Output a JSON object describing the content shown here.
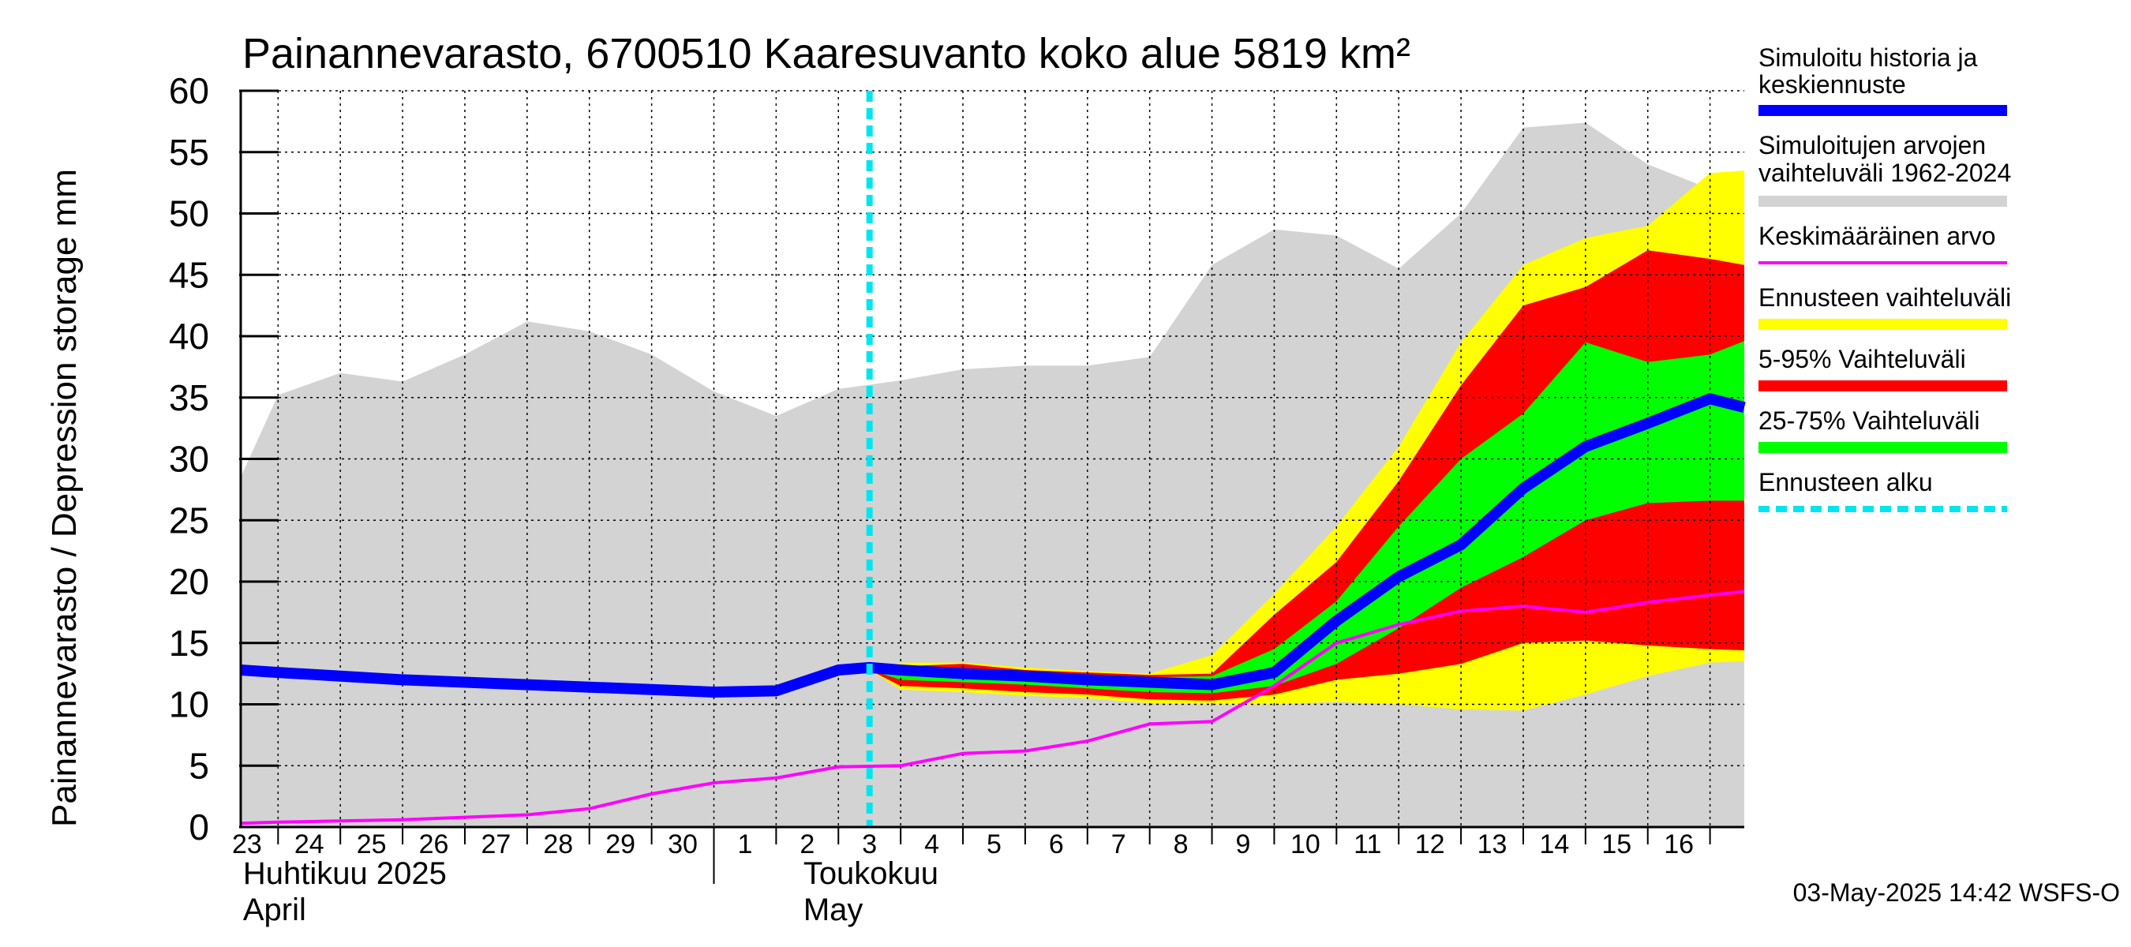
{
  "chart_data": {
    "type": "area",
    "title": "Painannevarasto, 6700510 Kaaresuvanto koko alue 5819 km²",
    "ylabel": "Painannevarasto / Depression storage    mm",
    "ylim": [
      0,
      60
    ],
    "yticks": [
      0,
      5,
      10,
      15,
      20,
      25,
      30,
      35,
      40,
      45,
      50,
      55,
      60
    ],
    "x_range": [
      -0.1,
      24.05
    ],
    "x_day_index_note_days": [
      {
        "i": 0,
        "label": "23"
      },
      {
        "i": 1,
        "label": "24"
      },
      {
        "i": 2,
        "label": "25"
      },
      {
        "i": 3,
        "label": "26"
      },
      {
        "i": 4,
        "label": "27"
      },
      {
        "i": 5,
        "label": "28"
      },
      {
        "i": 6,
        "label": "29"
      },
      {
        "i": 7,
        "label": "30"
      },
      {
        "i": 8,
        "label": "1"
      },
      {
        "i": 9,
        "label": "2"
      },
      {
        "i": 10,
        "label": "3"
      },
      {
        "i": 11,
        "label": "4"
      },
      {
        "i": 12,
        "label": "5"
      },
      {
        "i": 13,
        "label": "6"
      },
      {
        "i": 14,
        "label": "7"
      },
      {
        "i": 15,
        "label": "8"
      },
      {
        "i": 16,
        "label": "9"
      },
      {
        "i": 17,
        "label": "10"
      },
      {
        "i": 18,
        "label": "11"
      },
      {
        "i": 19,
        "label": "12"
      },
      {
        "i": 20,
        "label": "13"
      },
      {
        "i": 21,
        "label": "14"
      },
      {
        "i": 22,
        "label": "15"
      },
      {
        "i": 23,
        "label": "16"
      }
    ],
    "months": [
      {
        "i": 0,
        "fi": "Huhtikuu  2025",
        "en": "April"
      },
      {
        "i": 9,
        "fi": "Toukokuu",
        "en": "May"
      }
    ],
    "forecast_start": 10,
    "historical_range": {
      "x": [
        -0.1,
        0.5,
        1.5,
        2.5,
        3.5,
        4.5,
        5.5,
        6.5,
        7.5,
        8.5,
        9.5,
        10.5,
        11.5,
        12.5,
        13.5,
        14.5,
        15.5,
        16.5,
        17.5,
        18.5,
        19.5,
        20.5,
        21.5,
        22.5,
        23.5,
        24.05
      ],
      "upper": [
        28.5,
        35.2,
        37.0,
        36.3,
        38.5,
        41.2,
        40.4,
        38.5,
        35.5,
        33.5,
        35.7,
        36.4,
        37.3,
        37.6,
        37.6,
        38.3,
        45.8,
        48.7,
        48.2,
        45.5,
        50.0,
        57.0,
        57.4,
        54.0,
        52.0,
        52.0
      ],
      "lower": [
        0,
        0,
        0,
        0,
        0,
        0,
        0,
        0,
        0,
        0,
        0,
        0,
        0,
        0,
        0,
        0,
        0,
        0,
        0,
        0,
        0,
        0,
        0,
        0,
        0,
        0
      ]
    },
    "forecast_bands": {
      "x": [
        10.0,
        10.5,
        11.5,
        12.5,
        13.5,
        14.5,
        15.5,
        16.5,
        17.5,
        18.5,
        19.5,
        20.5,
        21.5,
        22.5,
        23.5,
        24.05
      ],
      "total": {
        "upper": [
          12.8,
          13.4,
          13.4,
          13.0,
          12.7,
          12.5,
          14.0,
          19.0,
          24.5,
          31.0,
          39.5,
          45.8,
          48.0,
          49.0,
          53.3,
          53.5
        ],
        "lower": [
          12.8,
          11.2,
          11.0,
          10.7,
          10.5,
          10.1,
          10.0,
          10.0,
          10.2,
          10.0,
          9.6,
          9.5,
          10.8,
          12.3,
          13.4,
          13.5
        ]
      },
      "p5_95": {
        "upper": [
          12.8,
          13.1,
          13.3,
          12.8,
          12.6,
          12.4,
          12.5,
          17.3,
          21.6,
          28.2,
          36.0,
          42.5,
          44.0,
          47.0,
          46.3,
          45.8
        ],
        "lower": [
          12.8,
          11.5,
          11.3,
          11.0,
          10.8,
          10.4,
          10.3,
          10.8,
          12.0,
          12.5,
          13.3,
          15.0,
          15.2,
          14.8,
          14.5,
          14.4
        ],
        "gap_upper": [
          26.4,
          26.6,
          26.6,
          26.6
        ],
        "gap_lower": [
          22.0,
          25.0,
          26.3,
          26.5
        ]
      },
      "p25_75": {
        "upper": [
          12.8,
          12.9,
          12.9,
          12.6,
          12.4,
          12.2,
          12.3,
          14.5,
          18.4,
          24.5,
          30.0,
          33.7,
          39.5,
          37.9,
          38.5,
          39.6
        ],
        "lower": [
          12.8,
          12.0,
          11.8,
          11.6,
          11.3,
          11.0,
          10.9,
          11.5,
          13.3,
          16.2,
          19.5,
          22.0,
          25.0,
          26.4,
          26.6,
          26.6
        ]
      }
    },
    "series": [
      {
        "name": "Simuloitu historia ja keskiennuste",
        "x": [
          -0.1,
          0.5,
          1.5,
          2.5,
          3.5,
          4.5,
          5.5,
          6.5,
          7.5,
          8.5,
          9.5,
          10.0,
          10.5,
          11.5,
          12.5,
          13.5,
          14.5,
          15.5,
          16.5,
          17.5,
          18.5,
          19.5,
          20.5,
          21.5,
          22.5,
          23.5,
          24.05
        ],
        "values": [
          12.8,
          12.6,
          12.3,
          12.0,
          11.8,
          11.6,
          11.4,
          11.2,
          11.0,
          11.1,
          12.8,
          13.0,
          12.8,
          12.5,
          12.3,
          12.0,
          11.8,
          11.6,
          12.6,
          16.8,
          20.4,
          23.0,
          27.6,
          31.0,
          32.9,
          34.9,
          34.2
        ]
      },
      {
        "name": "Keskimääräinen arvo",
        "x": [
          -0.1,
          0.5,
          1.5,
          2.5,
          3.5,
          4.5,
          5.5,
          6.5,
          7.5,
          8.5,
          9.5,
          10.5,
          11.5,
          12.5,
          13.5,
          14.5,
          15.5,
          16.5,
          17.5,
          18.5,
          19.5,
          20.5,
          21.5,
          22.5,
          23.5,
          24.05
        ],
        "values": [
          0.3,
          0.4,
          0.5,
          0.6,
          0.8,
          1.0,
          1.5,
          2.7,
          3.6,
          4.0,
          4.9,
          5.0,
          6.0,
          6.2,
          7.0,
          8.4,
          8.6,
          11.5,
          15.0,
          16.5,
          17.6,
          18.0,
          17.5,
          18.3,
          18.9,
          19.2
        ]
      }
    ],
    "legend": [
      {
        "label": "Simuloitu historia ja keskiennuste",
        "color": "#0000ff"
      },
      {
        "label": "Simuloitujen arvojen vaihteluväli 1962-2024",
        "color": "#d3d3d3"
      },
      {
        "label": "Keskimääräinen arvo",
        "color": "#ff00ff"
      },
      {
        "label": "Ennusteen vaihteluväli",
        "color": "#ffff00"
      },
      {
        "label": "5-95% Vaihteluväli",
        "color": "#ff0000"
      },
      {
        "label": "25-75% Vaihteluväli",
        "color": "#00ff00"
      },
      {
        "label": "Ennusteen alku",
        "color": "#00e5ee"
      }
    ],
    "legend_position": "right",
    "grid": true,
    "footer": "03-May-2025 14:42 WSFS-O"
  },
  "legend_text": {
    "l1a": "Simuloitu historia ja",
    "l1b": "keskiennuste",
    "l2a": "Simuloitujen arvojen",
    "l2b": "vaihteluväli 1962-2024",
    "l3": "Keskimääräinen arvo",
    "l4": "Ennusteen vaihteluväli",
    "l5": "5-95% Vaihteluväli",
    "l6": "25-75% Vaihteluväli",
    "l7": "Ennusteen alku"
  }
}
